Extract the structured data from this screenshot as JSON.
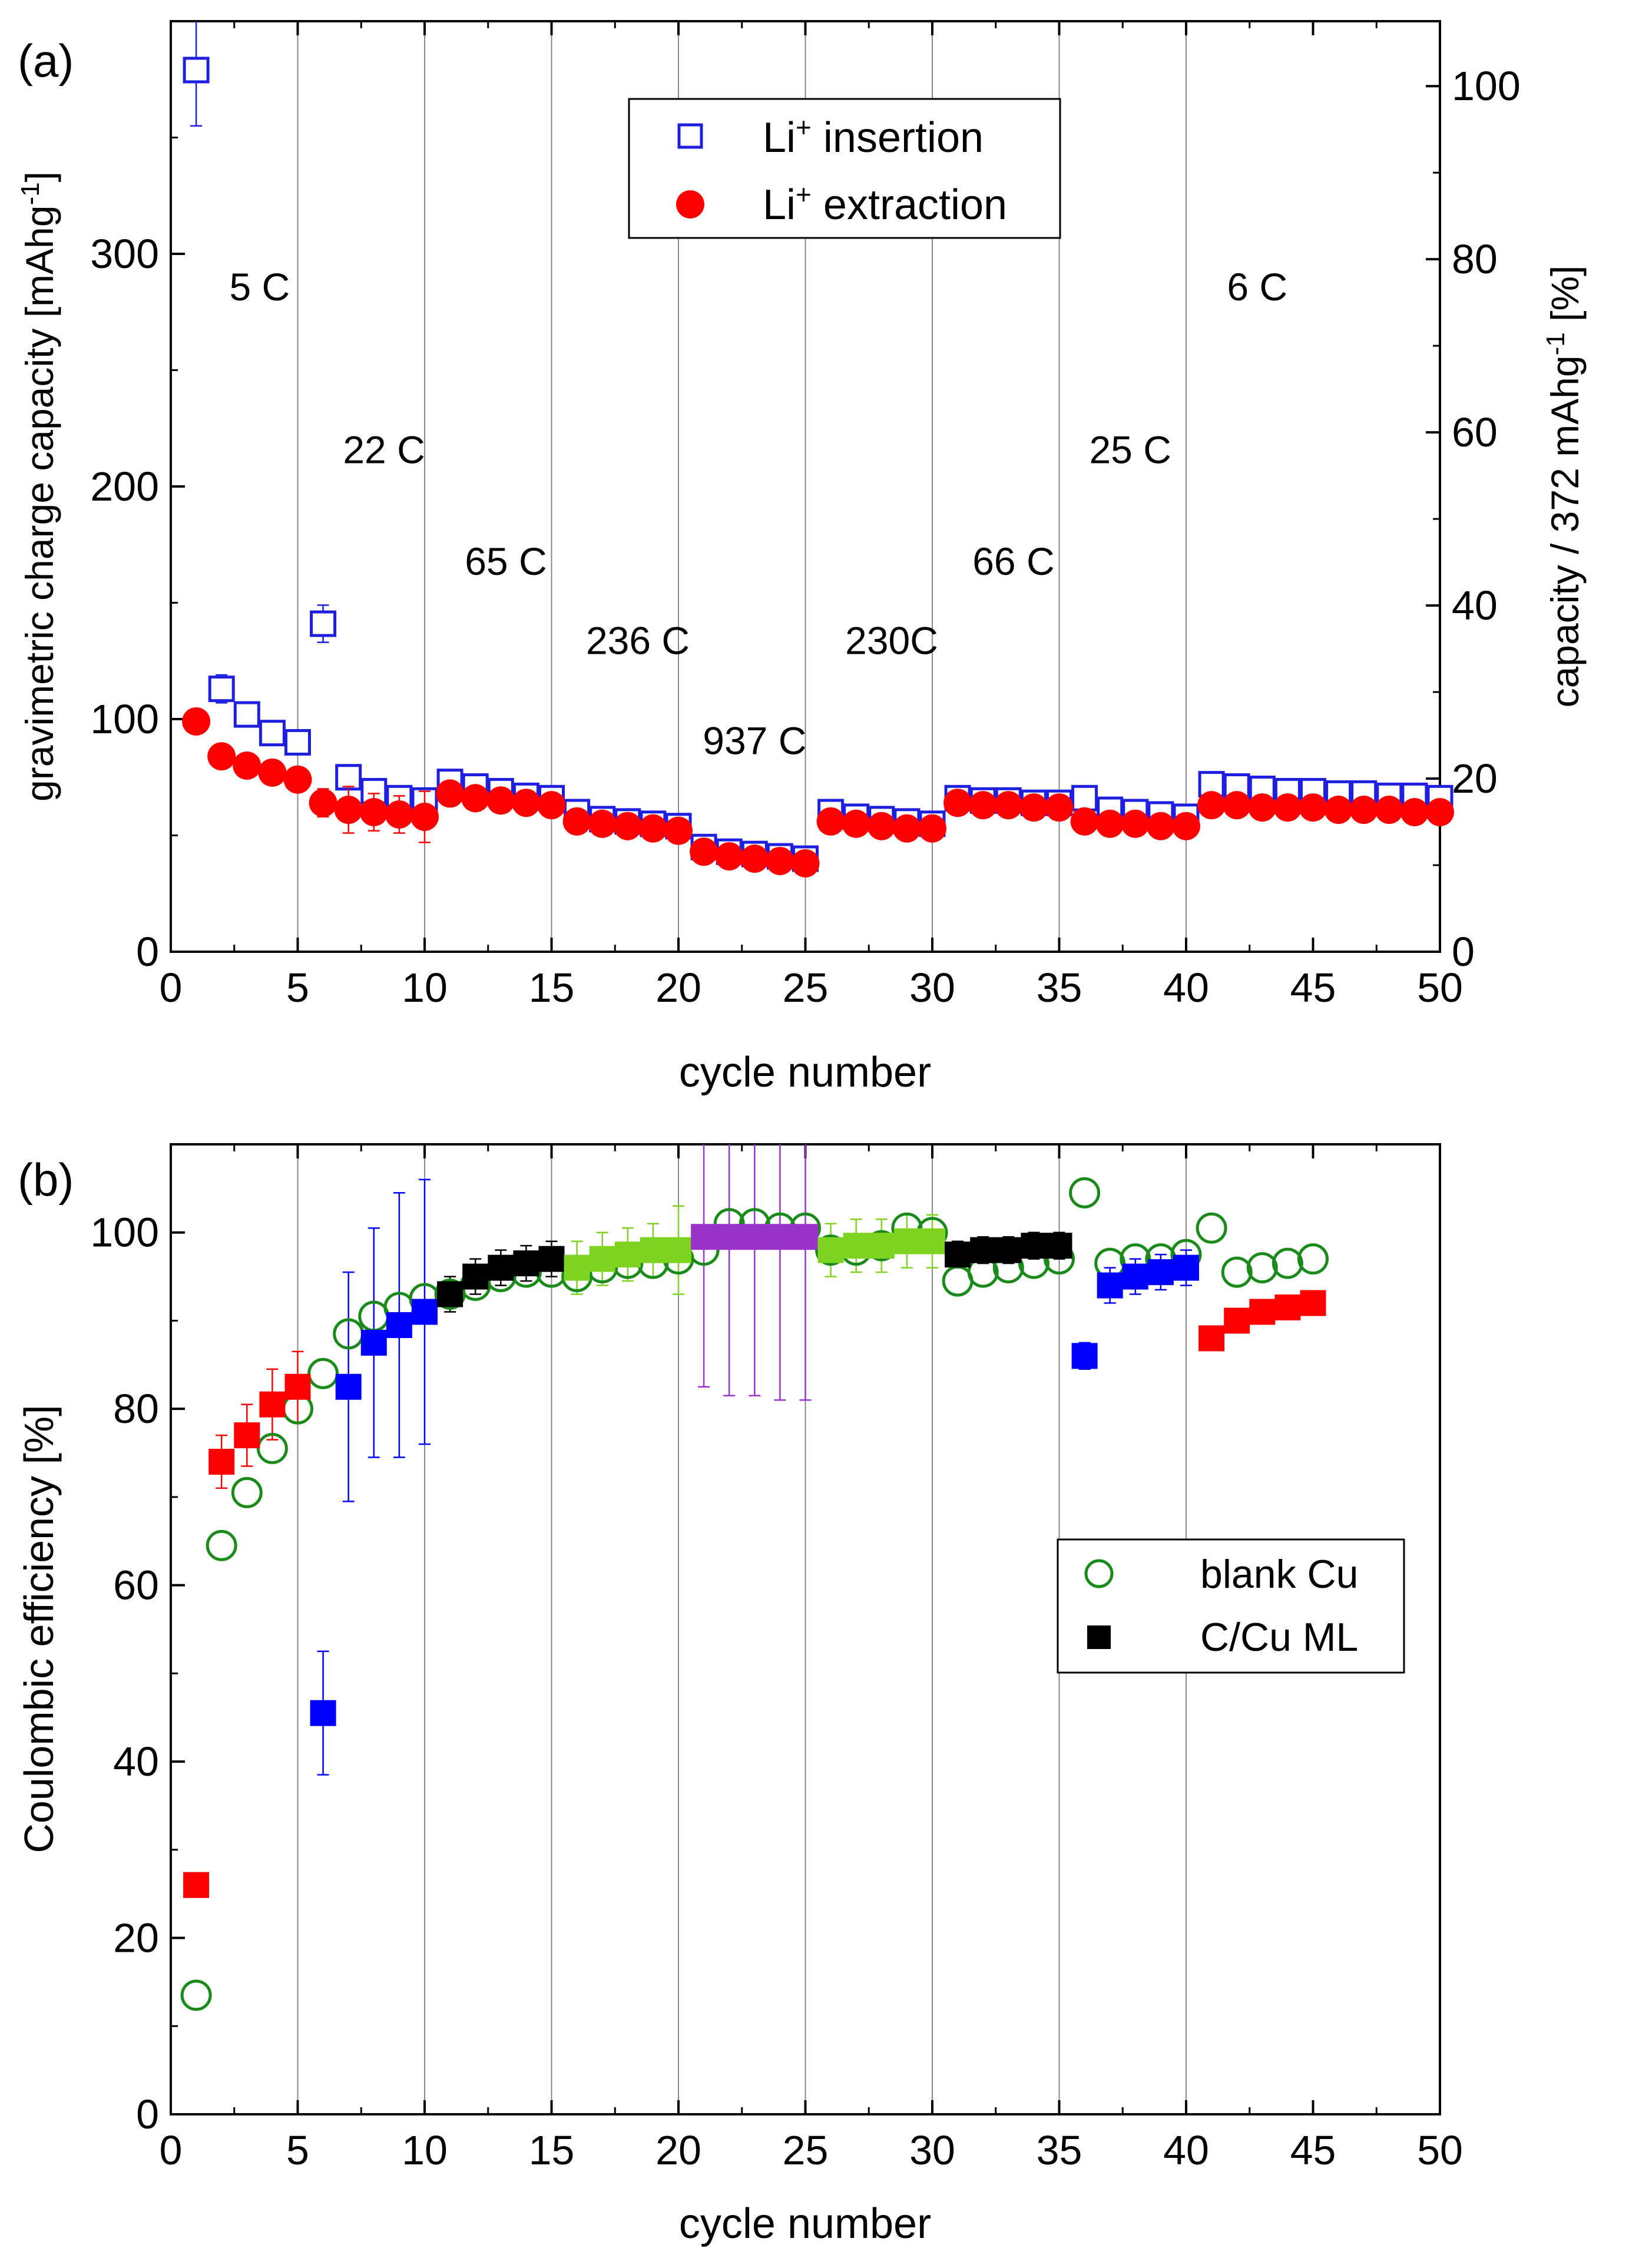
{
  "chart_data": [
    {
      "panel": "(a)",
      "type": "scatter",
      "xlabel": "cycle number",
      "ylabel": "gravimetric charge capacity [mAhg",
      "ylabel_sup": "-1",
      "ylabel_end": "]",
      "y2label": "capacity / 372 mAhg",
      "y2label_sup": "-1",
      "y2label_end": " [%]",
      "xlim": [
        0,
        50
      ],
      "ylim": [
        0,
        400
      ],
      "y2lim": [
        0,
        107.5
      ],
      "xticks": [
        0,
        5,
        10,
        15,
        20,
        25,
        30,
        35,
        40,
        45,
        50
      ],
      "yticks": [
        0,
        100,
        200,
        300
      ],
      "y2ticks": [
        0,
        20,
        40,
        60,
        80,
        100
      ],
      "vlines": [
        5,
        10,
        15,
        20,
        25,
        30,
        35,
        40
      ],
      "rate_labels": [
        {
          "text": "5 C",
          "x": 3.5,
          "y": 280
        },
        {
          "text": "22 C",
          "x": 8.4,
          "y": 210
        },
        {
          "text": "65 C",
          "x": 13.2,
          "y": 162
        },
        {
          "text": "236 C",
          "x": 18.4,
          "y": 128
        },
        {
          "text": "937 C",
          "x": 23.0,
          "y": 85
        },
        {
          "text": "230C",
          "x": 28.4,
          "y": 128
        },
        {
          "text": "66 C",
          "x": 33.2,
          "y": 162
        },
        {
          "text": "25 C",
          "x": 37.8,
          "y": 210
        },
        {
          "text": "6 C",
          "x": 42.8,
          "y": 280
        }
      ],
      "legend": [
        {
          "label": "Li",
          "sup": "+",
          "rest": " insertion",
          "marker": "open-square",
          "color": "#1f1fe0"
        },
        {
          "label": "Li",
          "sup": "+",
          "rest": " extraction",
          "marker": "filled-circle",
          "color": "#ff0000"
        }
      ],
      "series": [
        {
          "name": "Li+ insertion",
          "color": "#1f1fe0",
          "marker": "open-square",
          "x": [
            1,
            2,
            3,
            4,
            5,
            6,
            7,
            8,
            9,
            10,
            11,
            12,
            13,
            14,
            15,
            16,
            17,
            18,
            19,
            20,
            21,
            22,
            23,
            24,
            25,
            26,
            27,
            28,
            29,
            30,
            31,
            32,
            33,
            34,
            35,
            36,
            37,
            38,
            39,
            40,
            41,
            42,
            43,
            44,
            45,
            46,
            47,
            48,
            49,
            50
          ],
          "y": [
            379,
            113,
            102,
            94,
            90,
            141,
            75,
            69,
            66,
            65,
            73,
            71,
            69,
            67,
            66,
            60,
            57,
            56,
            55,
            54,
            45,
            43,
            42,
            41,
            40,
            60,
            58,
            57,
            56,
            55,
            66,
            65,
            65,
            64,
            64,
            66,
            61,
            60,
            59,
            58,
            72,
            71,
            70,
            69,
            69,
            68,
            68,
            67,
            67,
            66
          ],
          "yerr": [
            24,
            6,
            5,
            4,
            4,
            8,
            5,
            5,
            5,
            5,
            3,
            3,
            3,
            3,
            3,
            3,
            3,
            3,
            3,
            3,
            2,
            2,
            2,
            2,
            2,
            2,
            2,
            2,
            2,
            2,
            2,
            2,
            2,
            2,
            2,
            2,
            2,
            2,
            2,
            2,
            2,
            2,
            2,
            2,
            2,
            2,
            2,
            2,
            2,
            2
          ]
        },
        {
          "name": "Li+ extraction",
          "color": "#ff0000",
          "marker": "filled-circle",
          "x": [
            1,
            2,
            3,
            4,
            5,
            6,
            7,
            8,
            9,
            10,
            11,
            12,
            13,
            14,
            15,
            16,
            17,
            18,
            19,
            20,
            21,
            22,
            23,
            24,
            25,
            26,
            27,
            28,
            29,
            30,
            31,
            32,
            33,
            34,
            35,
            36,
            37,
            38,
            39,
            40,
            41,
            42,
            43,
            44,
            45,
            46,
            47,
            48,
            49,
            50
          ],
          "y": [
            99,
            84,
            80,
            77,
            74,
            64,
            61,
            60,
            59,
            58,
            68,
            66,
            65,
            64,
            63,
            56,
            55,
            54,
            53,
            52,
            43,
            41,
            40,
            39,
            38,
            56,
            55,
            54,
            53,
            53,
            64,
            63,
            63,
            62,
            62,
            56,
            55,
            55,
            54,
            54,
            63,
            63,
            62,
            62,
            62,
            61,
            61,
            61,
            60,
            60
          ],
          "yerr": [
            4,
            3,
            3,
            3,
            3,
            6,
            10,
            8,
            8,
            11,
            3,
            3,
            3,
            3,
            3,
            3,
            3,
            3,
            3,
            3,
            2,
            2,
            2,
            2,
            2,
            2,
            2,
            2,
            2,
            2,
            2,
            2,
            2,
            2,
            2,
            2,
            2,
            2,
            2,
            2,
            2,
            2,
            2,
            2,
            2,
            2,
            2,
            2,
            2,
            2
          ]
        }
      ]
    },
    {
      "panel": "(b)",
      "type": "scatter",
      "xlabel": "cycle number",
      "ylabel": "Coulombic efficiency [%]",
      "xlim": [
        0,
        50
      ],
      "ylim": [
        0,
        110
      ],
      "xticks": [
        0,
        5,
        10,
        15,
        20,
        25,
        30,
        35,
        40,
        45,
        50
      ],
      "yticks": [
        0,
        20,
        40,
        60,
        80,
        100
      ],
      "vlines": [
        5,
        10,
        15,
        20,
        25,
        30,
        35,
        40
      ],
      "legend": [
        {
          "label": "blank Cu",
          "marker": "open-circle",
          "color": "#1a8a1a"
        },
        {
          "label": "C/Cu ML",
          "marker": "filled-square",
          "color": "#000000"
        }
      ],
      "series": [
        {
          "name": "blank Cu",
          "color": "#1a8a1a",
          "marker": "open-circle",
          "x": [
            1,
            2,
            3,
            4,
            5,
            6,
            7,
            8,
            9,
            10,
            11,
            12,
            13,
            14,
            15,
            16,
            17,
            18,
            19,
            20,
            21,
            22,
            23,
            24,
            25,
            26,
            27,
            28,
            29,
            30,
            31,
            32,
            33,
            34,
            35,
            36,
            37,
            38,
            39,
            40,
            41,
            42,
            43,
            44,
            45
          ],
          "y": [
            13.5,
            64.5,
            70.5,
            75.5,
            80,
            84,
            88.5,
            90.5,
            91.5,
            92.5,
            93,
            94,
            95,
            95.5,
            95.5,
            95,
            96,
            96.5,
            96.5,
            97,
            98,
            101,
            101,
            100.5,
            100.5,
            98,
            98,
            98.5,
            100.5,
            100,
            94.5,
            95.5,
            96,
            96.5,
            97,
            104.5,
            96.5,
            97,
            97,
            97.5,
            100.5,
            95.5,
            96,
            96.5,
            97
          ]
        },
        {
          "name": "C/Cu ML",
          "marker": "filled-square",
          "x": [
            1,
            2,
            3,
            4,
            5,
            6,
            7,
            8,
            9,
            10,
            11,
            12,
            13,
            14,
            15,
            16,
            17,
            18,
            19,
            20,
            21,
            22,
            23,
            24,
            25,
            26,
            27,
            28,
            29,
            30,
            31,
            32,
            33,
            34,
            35,
            36,
            37,
            38,
            39,
            40,
            41,
            42,
            43,
            44,
            45
          ],
          "y": [
            26,
            74,
            77,
            80.5,
            82.5,
            45.5,
            82.5,
            87.5,
            89.5,
            91,
            93,
            95,
            96,
            96.5,
            97,
            96,
            97,
            97.5,
            98,
            98,
            99.5,
            99.5,
            99.5,
            99.5,
            99.5,
            98,
            98.5,
            98.5,
            99,
            99,
            97.5,
            98,
            98,
            98.5,
            98.5,
            86,
            94,
            95,
            95.5,
            96,
            88,
            90,
            91,
            91.5,
            92
          ],
          "yerr": [
            0,
            3,
            3.5,
            4,
            4,
            7,
            13,
            13,
            15,
            15,
            2,
            2,
            2,
            2,
            2,
            3,
            3,
            3,
            3,
            5,
            17,
            18,
            18,
            18.5,
            18.5,
            3,
            3,
            3,
            3,
            3,
            1.5,
            1.5,
            1.5,
            1.5,
            1.5,
            1.5,
            2,
            2,
            2,
            2,
            1,
            1,
            1,
            1,
            1
          ],
          "colors": [
            "#ff0000",
            "#ff0000",
            "#ff0000",
            "#ff0000",
            "#ff0000",
            "#0000ff",
            "#0000ff",
            "#0000ff",
            "#0000ff",
            "#0000ff",
            "#000000",
            "#000000",
            "#000000",
            "#000000",
            "#000000",
            "#7ed321",
            "#7ed321",
            "#7ed321",
            "#7ed321",
            "#7ed321",
            "#9a33cc",
            "#9a33cc",
            "#9a33cc",
            "#9a33cc",
            "#9a33cc",
            "#7ed321",
            "#7ed321",
            "#7ed321",
            "#7ed321",
            "#7ed321",
            "#000000",
            "#000000",
            "#000000",
            "#000000",
            "#000000",
            "#0000ff",
            "#0000ff",
            "#0000ff",
            "#0000ff",
            "#0000ff",
            "#ff0000",
            "#ff0000",
            "#ff0000",
            "#ff0000",
            "#ff0000"
          ]
        }
      ]
    }
  ]
}
